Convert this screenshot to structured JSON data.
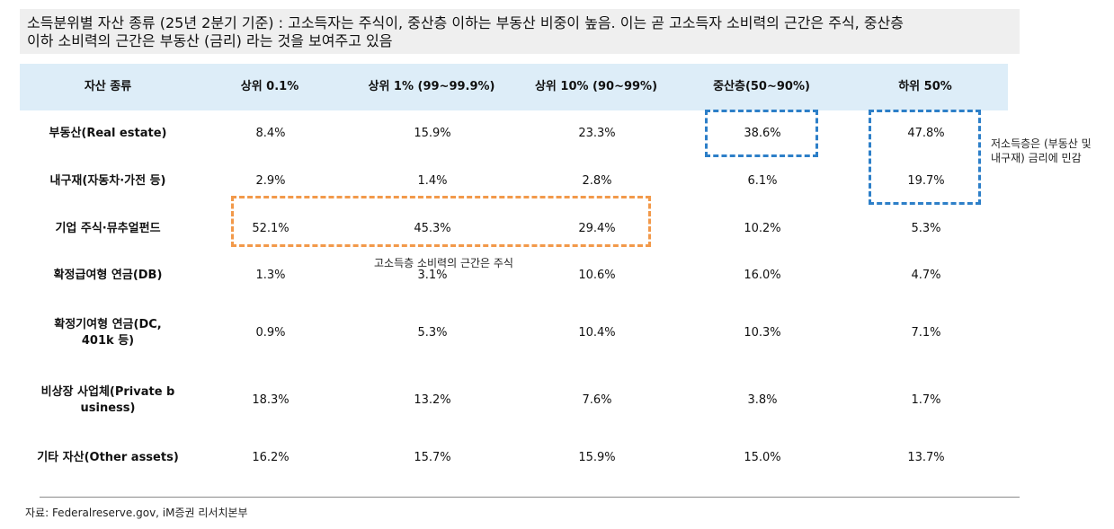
{
  "title": {
    "line1": "소득분위별 자산 종류 (25년 2분기 기준) : 고소득자는 주식이, 중산층 이하는 부동산 비중이 높음. 이는 곧 고소득자 소비력의 근간은 주식, 중산층",
    "line2": "이하 소비력의 근간은 부동산 (금리) 라는 것을 보여주고 있음"
  },
  "table": {
    "headers": [
      "자산 종류",
      "상위 0.1%",
      "상위 1% (99~99.9%)",
      "상위 10% (90~99%)",
      "중산층(50~90%)",
      "하위 50%"
    ],
    "rows": [
      {
        "label": "부동산(Real estate)",
        "values": [
          "8.4%",
          "15.9%",
          "23.3%",
          "38.6%",
          "47.8%"
        ]
      },
      {
        "label": "내구재(자동차·가전 등)",
        "values": [
          "2.9%",
          "1.4%",
          "2.8%",
          "6.1%",
          "19.7%"
        ]
      },
      {
        "label": "기업 주식·뮤추얼펀드",
        "values": [
          "52.1%",
          "45.3%",
          "29.4%",
          "10.2%",
          "5.3%"
        ]
      },
      {
        "label": "확정급여형 연금(DB)",
        "values": [
          "1.3%",
          "3.1%",
          "10.6%",
          "16.0%",
          "4.7%"
        ]
      },
      {
        "label_line1": "확정기여형 연금(DC,",
        "label_line2": "401k 등)",
        "values": [
          "0.9%",
          "5.3%",
          "10.4%",
          "10.3%",
          "7.1%"
        ]
      },
      {
        "label_line1": "비상장 사업체(Private b",
        "label_line2": "usiness)",
        "values": [
          "18.3%",
          "13.2%",
          "7.6%",
          "3.8%",
          "1.7%"
        ]
      },
      {
        "label": "기타 자산(Other assets)",
        "values": [
          "16.2%",
          "15.7%",
          "15.9%",
          "15.0%",
          "13.7%"
        ]
      }
    ]
  },
  "annotations": {
    "high_income_note": "고소득층 소비력의 근간은 주식",
    "low_income_note_line1": "저소득층은 (부동산 및",
    "low_income_note_line2": "내구재) 금리에 민감"
  },
  "colors": {
    "header_bg": "#ddedf8",
    "title_bg": "#efefef",
    "orange_highlight": "#f2994a",
    "blue_highlight": "#2d7fc8"
  },
  "source": "자료: Federalreserve.gov, iM증권 리서치본부"
}
